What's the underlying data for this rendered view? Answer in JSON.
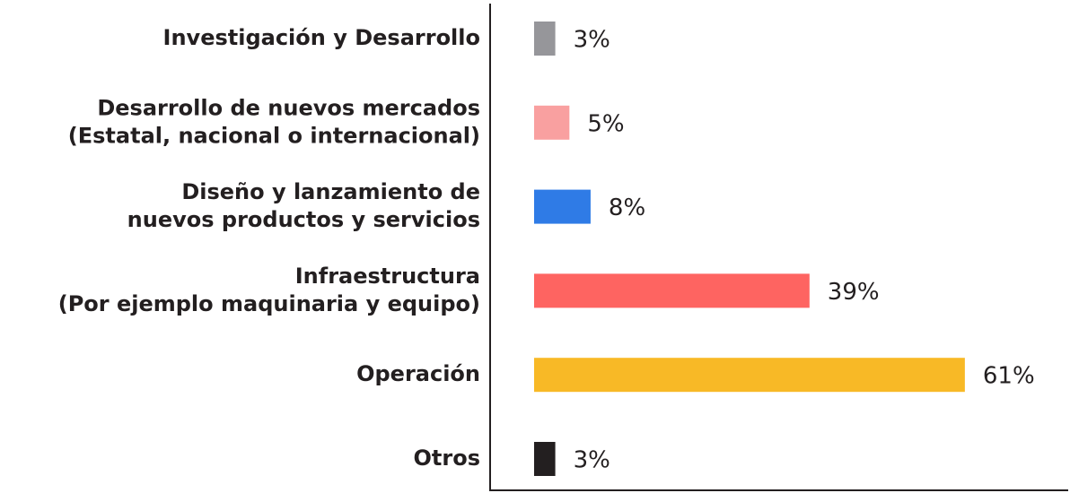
{
  "chart_data": {
    "type": "barh",
    "categories": [
      [
        "Investigación y Desarrollo"
      ],
      [
        "Desarrollo de nuevos mercados",
        "(Estatal, nacional o internacional)"
      ],
      [
        "Diseño y lanzamiento de",
        "nuevos productos y servicios"
      ],
      [
        "Infraestructura",
        "(Por ejemplo maquinaria y equipo)"
      ],
      [
        "Operación"
      ],
      [
        "Otros"
      ]
    ],
    "values": [
      3,
      5,
      8,
      39,
      61,
      3
    ],
    "value_labels": [
      "3%",
      "5%",
      "8%",
      "39%",
      "61%",
      "3%"
    ],
    "colors": [
      "#96969a",
      "#f9a0a0",
      "#2f7be6",
      "#fe6461",
      "#f8b926",
      "#231f20"
    ],
    "xlim": [
      0,
      75
    ]
  }
}
